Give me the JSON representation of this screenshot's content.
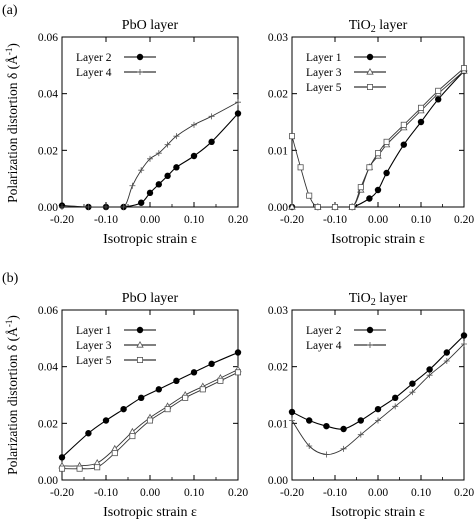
{
  "figure": {
    "sublabels": [
      "(a)",
      "(b)"
    ],
    "ylabel_prefix": "Polarization distortion δ",
    "ylabel_unit_open": " (Å",
    "ylabel_unit_exp": "-1",
    "ylabel_unit_close": ")"
  },
  "chart_data": [
    {
      "id": "a-pbo",
      "type": "line",
      "title_parts": [
        "PbO layer"
      ],
      "xlabel": "Isotropic strain  ε",
      "xlim": [
        -0.2,
        0.2
      ],
      "ylim": [
        0,
        0.06
      ],
      "xticks": [
        "-0.20",
        "-0.10",
        "0.00",
        "0.10",
        "0.20"
      ],
      "xtick_values": [
        -0.2,
        -0.1,
        0.0,
        0.1,
        0.2
      ],
      "yticks": [
        "0.00",
        "0.02",
        "0.04",
        "0.06"
      ],
      "ytick_values": [
        0.0,
        0.02,
        0.04,
        0.06
      ],
      "legend_position": "top-left",
      "series": [
        {
          "name": "Layer 2",
          "marker": "circle",
          "x": [
            -0.2,
            -0.14,
            -0.1,
            -0.06,
            -0.02,
            0.0,
            0.02,
            0.04,
            0.06,
            0.1,
            0.14,
            0.2
          ],
          "y": [
            0.0005,
            0.0,
            0.0,
            0.0,
            0.0015,
            0.005,
            0.008,
            0.011,
            0.014,
            0.018,
            0.023,
            0.033
          ]
        },
        {
          "name": "Layer 4",
          "marker": "plus",
          "x": [
            -0.2,
            -0.14,
            -0.1,
            -0.06,
            -0.04,
            -0.02,
            0.0,
            0.02,
            0.04,
            0.06,
            0.1,
            0.14,
            0.2
          ],
          "y": [
            0.0,
            0.0,
            0.0,
            0.0,
            0.0075,
            0.013,
            0.017,
            0.019,
            0.022,
            0.025,
            0.029,
            0.032,
            0.037
          ]
        }
      ]
    },
    {
      "id": "a-tio2",
      "type": "line",
      "title_parts": [
        "TiO",
        "2",
        " layer"
      ],
      "xlabel": "Isotropic strain  ε",
      "xlim": [
        -0.2,
        0.2
      ],
      "ylim": [
        0,
        0.03
      ],
      "xticks": [
        "-0.20",
        "-0.10",
        "0.00",
        "0.10",
        "0.20"
      ],
      "xtick_values": [
        -0.2,
        -0.1,
        0.0,
        0.1,
        0.2
      ],
      "yticks": [
        "0.00",
        "0.01",
        "0.02",
        "0.03"
      ],
      "ytick_values": [
        0.0,
        0.01,
        0.02,
        0.03
      ],
      "legend_position": "top-left",
      "series": [
        {
          "name": "Layer 1",
          "marker": "circle",
          "x": [
            -0.2,
            -0.14,
            -0.1,
            -0.06,
            -0.02,
            0.0,
            0.02,
            0.06,
            0.1,
            0.14,
            0.2
          ],
          "y": [
            0.0,
            0.0,
            0.0,
            0.0,
            0.0015,
            0.003,
            0.006,
            0.011,
            0.015,
            0.019,
            0.024
          ]
        },
        {
          "name": "Layer 3",
          "marker": "triangle",
          "x": [
            -0.2,
            -0.14,
            -0.1,
            -0.06,
            -0.04,
            -0.02,
            0.0,
            0.02,
            0.06,
            0.1,
            0.14,
            0.2
          ],
          "y": [
            0.0,
            0.0,
            0.0,
            0.0,
            0.003,
            0.007,
            0.009,
            0.011,
            0.014,
            0.017,
            0.02,
            0.024
          ]
        },
        {
          "name": "Layer 5",
          "marker": "square",
          "x": [
            -0.2,
            -0.18,
            -0.16,
            -0.14,
            -0.1,
            -0.06,
            -0.04,
            -0.02,
            0.0,
            0.02,
            0.06,
            0.1,
            0.14,
            0.2
          ],
          "y": [
            0.0125,
            0.007,
            0.002,
            0.0,
            0.0,
            0.0,
            0.0035,
            0.007,
            0.0095,
            0.0115,
            0.0145,
            0.0175,
            0.0205,
            0.0245
          ]
        }
      ]
    },
    {
      "id": "b-pbo",
      "type": "line",
      "title_parts": [
        "PbO layer"
      ],
      "xlabel": "Isotropic strain  ε",
      "xlim": [
        -0.2,
        0.2
      ],
      "ylim": [
        0,
        0.06
      ],
      "xticks": [
        "-0.20",
        "-0.10",
        "0.00",
        "0.10",
        "0.20"
      ],
      "xtick_values": [
        -0.2,
        -0.1,
        0.0,
        0.1,
        0.2
      ],
      "yticks": [
        "0.00",
        "0.02",
        "0.04",
        "0.06"
      ],
      "ytick_values": [
        0.0,
        0.02,
        0.04,
        0.06
      ],
      "legend_position": "top-left",
      "series": [
        {
          "name": "Layer 1",
          "marker": "circle",
          "x": [
            -0.2,
            -0.14,
            -0.1,
            -0.06,
            -0.02,
            0.02,
            0.06,
            0.1,
            0.14,
            0.2
          ],
          "y": [
            0.008,
            0.0165,
            0.021,
            0.025,
            0.029,
            0.032,
            0.035,
            0.038,
            0.041,
            0.045
          ]
        },
        {
          "name": "Layer 3",
          "marker": "triangle",
          "x": [
            -0.2,
            -0.16,
            -0.12,
            -0.08,
            -0.04,
            0.0,
            0.04,
            0.08,
            0.12,
            0.16,
            0.2
          ],
          "y": [
            0.005,
            0.005,
            0.006,
            0.011,
            0.017,
            0.022,
            0.026,
            0.03,
            0.033,
            0.036,
            0.039
          ]
        },
        {
          "name": "Layer 5",
          "marker": "square",
          "x": [
            -0.2,
            -0.16,
            -0.12,
            -0.08,
            -0.04,
            0.0,
            0.04,
            0.08,
            0.12,
            0.16,
            0.2
          ],
          "y": [
            0.004,
            0.004,
            0.0045,
            0.0095,
            0.0155,
            0.021,
            0.025,
            0.029,
            0.032,
            0.035,
            0.038
          ]
        }
      ]
    },
    {
      "id": "b-tio2",
      "type": "line",
      "title_parts": [
        "TiO",
        "2",
        " layer"
      ],
      "xlabel": "Isotropic strain  ε",
      "xlim": [
        -0.2,
        0.2
      ],
      "ylim": [
        0,
        0.03
      ],
      "xticks": [
        "-0.20",
        "-0.10",
        "0.00",
        "0.10",
        "0.20"
      ],
      "xtick_values": [
        -0.2,
        -0.1,
        0.0,
        0.1,
        0.2
      ],
      "yticks": [
        "0.00",
        "0.01",
        "0.02",
        "0.03"
      ],
      "ytick_values": [
        0.0,
        0.01,
        0.02,
        0.03
      ],
      "legend_position": "top-left",
      "series": [
        {
          "name": "Layer 2",
          "marker": "circle",
          "x": [
            -0.2,
            -0.16,
            -0.12,
            -0.08,
            -0.04,
            0.0,
            0.04,
            0.08,
            0.12,
            0.16,
            0.2
          ],
          "y": [
            0.012,
            0.0105,
            0.0095,
            0.009,
            0.0105,
            0.0125,
            0.0145,
            0.017,
            0.0195,
            0.0225,
            0.0255
          ]
        },
        {
          "name": "Layer 4",
          "marker": "plus",
          "x": [
            -0.2,
            -0.16,
            -0.12,
            -0.08,
            -0.04,
            0.0,
            0.04,
            0.08,
            0.12,
            0.16,
            0.2
          ],
          "y": [
            0.0105,
            0.006,
            0.0045,
            0.0055,
            0.008,
            0.0105,
            0.013,
            0.0155,
            0.0185,
            0.021,
            0.024
          ]
        }
      ]
    }
  ]
}
